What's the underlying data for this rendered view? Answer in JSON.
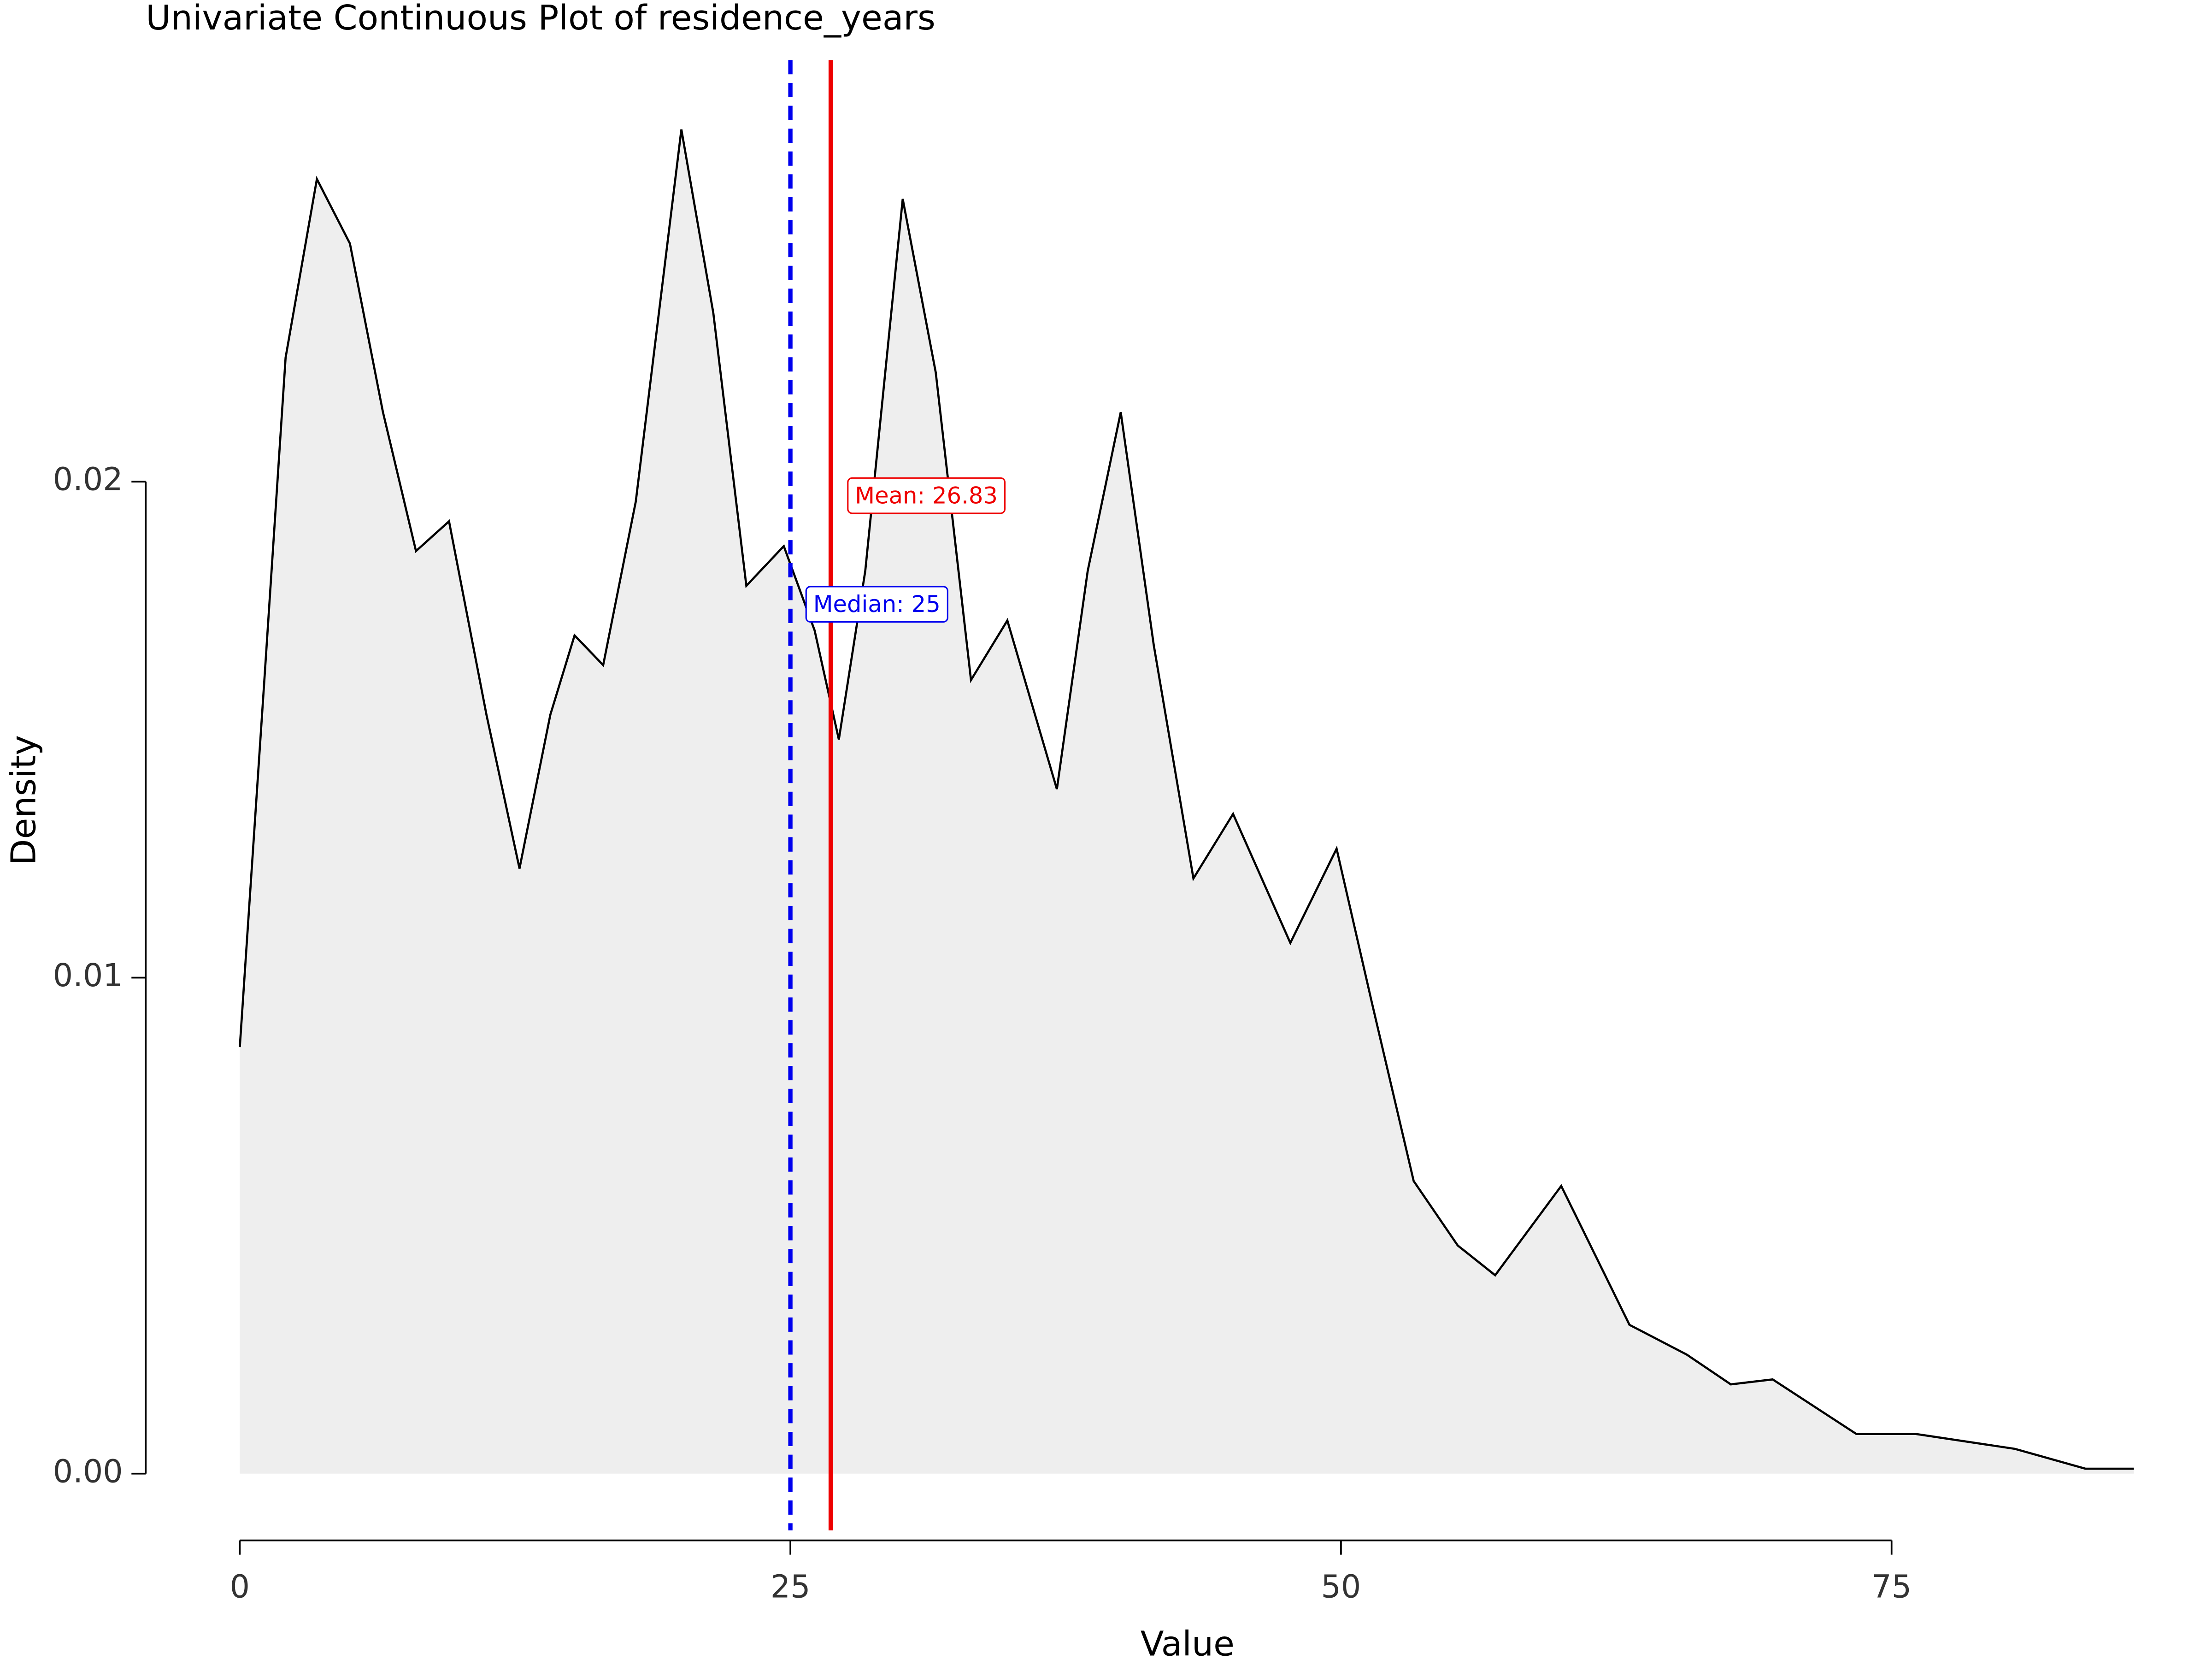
{
  "chart_data": {
    "type": "density",
    "title": "Univariate Continuous Plot of residence_years",
    "x_label": "Value",
    "y_label": "Density",
    "x": [
      0,
      1.1,
      2.08,
      3.5,
      5.0,
      6.5,
      8.0,
      9.5,
      11.2,
      12.7,
      14.1,
      15.2,
      16.5,
      17.98,
      20.05,
      21.5,
      23.0,
      24.7,
      26.1,
      27.2,
      28.4,
      30.1,
      31.6,
      33.2,
      34.85,
      37.1,
      38.5,
      40.0,
      41.5,
      43.3,
      45.1,
      47.7,
      49.8,
      51.4,
      53.3,
      55.3,
      57.0,
      60.0,
      63.1,
      65.7,
      67.7,
      69.6,
      73.4,
      76.1,
      80.6,
      83.8,
      86.0
    ],
    "values": [
      0.0086,
      0.0159,
      0.0225,
      0.0261,
      0.0248,
      0.0214,
      0.0186,
      0.0192,
      0.0153,
      0.0122,
      0.0153,
      0.0169,
      0.0163,
      0.0196,
      0.0271,
      0.0234,
      0.0179,
      0.0187,
      0.017,
      0.0148,
      0.0182,
      0.0257,
      0.0222,
      0.016,
      0.0172,
      0.0138,
      0.0182,
      0.0214,
      0.0167,
      0.012,
      0.0133,
      0.0107,
      0.0126,
      0.0095,
      0.0059,
      0.0046,
      0.004,
      0.0058,
      0.003,
      0.0024,
      0.0018,
      0.0019,
      0.0008,
      0.0008,
      0.0005,
      0.0001,
      0.0001
    ],
    "fill": "#eeeeee",
    "color": "#000000",
    "mean": 26.83,
    "mean_label": "Mean: 26.83",
    "mean_color": "#ee0000",
    "median": 25,
    "median_label": "Median: 25",
    "median_color": "#0000ee",
    "xlim": [
      -4.4,
      88.9
    ],
    "xticks": [
      0,
      25,
      50,
      75
    ],
    "ylim": [
      -0.001,
      0.0285
    ],
    "yticks": [
      {
        "value": 0,
        "label": "0.00"
      },
      0.01,
      0.02
    ]
  }
}
